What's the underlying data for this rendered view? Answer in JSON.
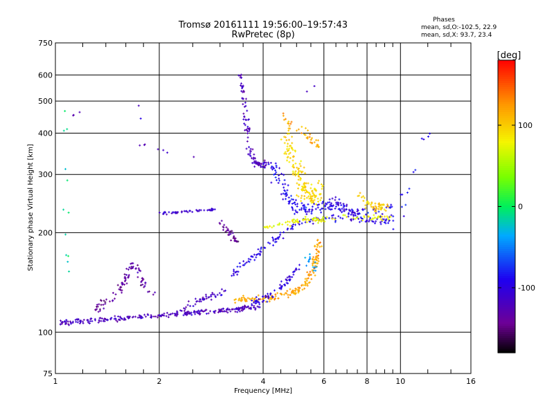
{
  "header": {
    "title_line1": "Tromsø 20161111 19:56:00–19:57:43",
    "title_line2": "RwPretec (8p)",
    "phases_heading": "Phases",
    "phases_line1": "mean, sd,O:-102.5, 22.9",
    "phases_line2": "mean, sd,X: 93.7, 23.4"
  },
  "chart_data": {
    "type": "scatter",
    "xlabel": "Frequency [MHz]",
    "ylabel": "Stationary phase Virtual Height [km]",
    "x_scale": "log",
    "y_scale": "log",
    "xlim": [
      1,
      16
    ],
    "ylim": [
      75,
      750
    ],
    "x_ticks": [
      1,
      2,
      4,
      6,
      8,
      10,
      16
    ],
    "x_tick_labels": [
      "1",
      "2",
      "4",
      "6",
      "8",
      "10",
      "16"
    ],
    "x_minor_ticks": [
      1.2,
      1.4,
      1.6,
      1.8,
      2.5,
      3,
      3.5,
      4.5,
      5,
      5.5,
      6.5,
      7,
      7.5,
      8.5,
      9,
      9.5,
      12,
      14
    ],
    "y_ticks": [
      75,
      100,
      200,
      300,
      400,
      500,
      600,
      750
    ],
    "y_tick_labels": [
      "75",
      "100",
      "200",
      "300",
      "400",
      "500",
      "600",
      "750"
    ],
    "grid": true,
    "colorbar": {
      "label": "[deg]",
      "min": -180,
      "max": 180,
      "ticks": [
        -100,
        0,
        100
      ],
      "tick_labels": [
        "-100",
        "0",
        "100"
      ]
    },
    "traces": [
      {
        "points": [
          [
            1.02,
            106
          ],
          [
            1.1,
            107
          ],
          [
            1.2,
            108
          ],
          [
            1.35,
            109
          ],
          [
            1.5,
            110
          ],
          [
            1.7,
            111
          ],
          [
            1.9,
            112
          ],
          [
            2.1,
            113
          ],
          [
            2.4,
            114
          ],
          [
            2.7,
            115
          ],
          [
            3.0,
            116
          ],
          [
            3.3,
            117
          ],
          [
            3.6,
            118
          ],
          [
            3.9,
            119
          ]
        ],
        "phase": -120,
        "spread": 0.025,
        "count": 260
      },
      {
        "points": [
          [
            3.3,
            124
          ],
          [
            3.7,
            126
          ],
          [
            4.2,
            127
          ],
          [
            4.6,
            129
          ],
          [
            5.0,
            133
          ],
          [
            5.3,
            140
          ],
          [
            5.5,
            150
          ],
          [
            5.65,
            162
          ],
          [
            5.75,
            175
          ],
          [
            5.8,
            190
          ]
        ],
        "phase": 120,
        "spread": 0.035,
        "count": 170
      },
      {
        "points": [
          [
            3.6,
            122
          ],
          [
            3.9,
            124
          ],
          [
            4.1,
            128
          ],
          [
            4.3,
            133
          ],
          [
            4.5,
            138
          ],
          [
            4.7,
            143
          ],
          [
            4.9,
            150
          ],
          [
            5.1,
            156
          ]
        ],
        "phase": -100,
        "spread": 0.04,
        "count": 70
      },
      {
        "points": [
          [
            3.25,
            150
          ],
          [
            3.5,
            160
          ],
          [
            3.8,
            170
          ],
          [
            4.2,
            185
          ],
          [
            4.6,
            200
          ],
          [
            5.0,
            212
          ],
          [
            5.5,
            218
          ],
          [
            6.0,
            222
          ],
          [
            7.0,
            220
          ],
          [
            8.0,
            218
          ],
          [
            9.0,
            216
          ],
          [
            9.5,
            222
          ]
        ],
        "phase": -95,
        "spread": 0.035,
        "count": 140
      },
      {
        "points": [
          [
            4.0,
            205
          ],
          [
            4.4,
            210
          ],
          [
            4.8,
            215
          ],
          [
            5.2,
            218
          ],
          [
            5.6,
            220
          ],
          [
            6.0,
            219
          ],
          [
            7.0,
            221
          ],
          [
            8.5,
            222
          ],
          [
            9.3,
            220
          ]
        ],
        "phase": 75,
        "spread": 0.03,
        "count": 100
      },
      {
        "points": [
          [
            3.45,
            610
          ],
          [
            3.5,
            540
          ],
          [
            3.55,
            470
          ],
          [
            3.6,
            420
          ],
          [
            3.62,
            380
          ],
          [
            3.7,
            340
          ],
          [
            3.8,
            325
          ],
          [
            3.95,
            320
          ],
          [
            4.1,
            325
          ]
        ],
        "phase": -120,
        "spread": 0.03,
        "count": 100
      },
      {
        "points": [
          [
            4.2,
            330
          ],
          [
            4.4,
            300
          ],
          [
            4.6,
            270
          ],
          [
            4.8,
            250
          ],
          [
            5.0,
            240
          ],
          [
            5.3,
            235
          ],
          [
            5.7,
            238
          ],
          [
            6.2,
            240
          ],
          [
            7.0,
            235
          ],
          [
            8.5,
            230
          ],
          [
            9.5,
            240
          ]
        ],
        "phase": -90,
        "spread": 0.06,
        "count": 160
      },
      {
        "points": [
          [
            4.6,
            400
          ],
          [
            4.8,
            350
          ],
          [
            5.0,
            310
          ],
          [
            5.2,
            280
          ],
          [
            5.4,
            260
          ],
          [
            5.6,
            250
          ],
          [
            5.8,
            280
          ]
        ],
        "phase": 95,
        "spread": 0.07,
        "count": 160
      },
      {
        "points": [
          [
            1.98,
            228
          ],
          [
            2.2,
            230
          ],
          [
            2.4,
            232
          ],
          [
            2.6,
            233
          ],
          [
            2.8,
            234
          ],
          [
            2.95,
            236
          ]
        ],
        "phase": -110,
        "spread": 0.012,
        "count": 50
      },
      {
        "points": [
          [
            3.0,
            215
          ],
          [
            3.15,
            205
          ],
          [
            3.25,
            195
          ],
          [
            3.35,
            188
          ]
        ],
        "phase": -140,
        "spread": 0.03,
        "count": 35
      },
      {
        "points": [
          [
            1.45,
            125
          ],
          [
            1.55,
            135
          ],
          [
            1.6,
            145
          ],
          [
            1.65,
            155
          ],
          [
            1.7,
            160
          ],
          [
            1.75,
            150
          ],
          [
            1.8,
            140
          ],
          [
            1.9,
            130
          ]
        ],
        "phase": -135,
        "spread": 0.04,
        "count": 70
      },
      {
        "points": [
          [
            1.3,
            115
          ],
          [
            1.35,
            120
          ],
          [
            1.4,
            128
          ]
        ],
        "phase": -140,
        "spread": 0.04,
        "count": 20
      },
      {
        "points": [
          [
            2.3,
            118
          ],
          [
            2.5,
            122
          ],
          [
            2.6,
            125
          ],
          [
            2.8,
            128
          ],
          [
            3.0,
            130
          ],
          [
            3.1,
            135
          ]
        ],
        "phase": -120,
        "spread": 0.035,
        "count": 45
      },
      {
        "points": [
          [
            7.6,
            260
          ],
          [
            8.0,
            250
          ],
          [
            8.4,
            240
          ],
          [
            8.8,
            235
          ],
          [
            9.0,
            245
          ]
        ],
        "phase": 100,
        "spread": 0.05,
        "count": 50
      },
      {
        "points": [
          [
            6.2,
            250
          ],
          [
            6.7,
            245
          ],
          [
            7.2,
            230
          ],
          [
            7.6,
            228
          ]
        ],
        "phase": -105,
        "spread": 0.05,
        "count": 40
      },
      {
        "points": [
          [
            5.4,
            170
          ],
          [
            5.5,
            165
          ],
          [
            5.6,
            158
          ],
          [
            5.7,
            155
          ]
        ],
        "phase": -40,
        "spread": 0.05,
        "count": 15
      },
      {
        "points": [
          [
            1.08,
            140
          ],
          [
            1.08,
            180
          ],
          [
            1.08,
            230
          ],
          [
            1.08,
            300
          ],
          [
            1.08,
            380
          ],
          [
            1.08,
            500
          ]
        ],
        "phase": -20,
        "spread": 0.03,
        "count": 12
      },
      {
        "points": [
          [
            4.5,
            450
          ],
          [
            4.9,
            420
          ],
          [
            5.3,
            400
          ],
          [
            5.6,
            380
          ],
          [
            5.9,
            350
          ]
        ],
        "phase": 115,
        "spread": 0.05,
        "count": 40
      },
      {
        "points": [
          [
            9.8,
            210
          ],
          [
            10.2,
            230
          ],
          [
            10.8,
            300
          ],
          [
            11.2,
            390
          ],
          [
            12.2,
            400
          ]
        ],
        "phase": -85,
        "spread": 0.06,
        "count": 14
      },
      {
        "points": [
          [
            1.1,
            450
          ],
          [
            1.15,
            470
          ],
          [
            1.7,
            520
          ],
          [
            1.8,
            350
          ],
          [
            2.0,
            360
          ],
          [
            2.5,
            340
          ],
          [
            6.2,
            590
          ]
        ],
        "phase": -115,
        "spread": 0.03,
        "count": 14
      }
    ]
  }
}
